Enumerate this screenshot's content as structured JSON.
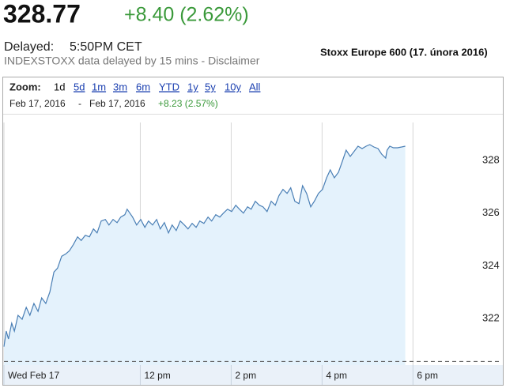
{
  "header": {
    "price": "328.77",
    "change": "+8.40 (2.62%)",
    "delayed_label": "Delayed:",
    "delayed_time": "5:50PM CET",
    "disclaimer": "INDEXSTOXX data delayed by 15 mins - Disclaimer"
  },
  "zoom": {
    "label": "Zoom:",
    "options": [
      "1d",
      "5d",
      "1m",
      "3m",
      "6m",
      "YTD",
      "1y",
      "5y",
      "10y",
      "All"
    ]
  },
  "range": {
    "from": "Feb 17, 2016",
    "separator": "-",
    "to": "Feb 17, 2016",
    "change": "+8.23 (2.57%)"
  },
  "chart_data": {
    "type": "area",
    "title": "Stoxx Europe 600 (17. února 2016)",
    "x": [
      9.0,
      9.05,
      9.1,
      9.17,
      9.23,
      9.31,
      9.4,
      9.49,
      9.57,
      9.66,
      9.75,
      9.83,
      9.92,
      10.01,
      10.1,
      10.18,
      10.27,
      10.36,
      10.44,
      10.53,
      10.62,
      10.7,
      10.79,
      10.88,
      10.97,
      11.05,
      11.14,
      11.23,
      11.31,
      11.4,
      11.49,
      11.57,
      11.66,
      11.71,
      11.83,
      11.92,
      12.01,
      12.1,
      12.18,
      12.27,
      12.36,
      12.44,
      12.53,
      12.62,
      12.7,
      12.79,
      12.88,
      12.97,
      13.05,
      13.14,
      13.23,
      13.31,
      13.4,
      13.49,
      13.57,
      13.66,
      13.75,
      13.83,
      13.92,
      14.01,
      14.1,
      14.18,
      14.27,
      14.36,
      14.44,
      14.53,
      14.62,
      14.7,
      14.79,
      14.88,
      14.97,
      15.05,
      15.14,
      15.23,
      15.31,
      15.4,
      15.49,
      15.57,
      15.66,
      15.75,
      15.83,
      15.92,
      16.01,
      16.1,
      16.18,
      16.27,
      16.36,
      16.44,
      16.53,
      16.62,
      16.7,
      16.79,
      16.88,
      16.97,
      17.05,
      17.14,
      17.23,
      17.31,
      17.4,
      17.43,
      17.49,
      17.57,
      17.66,
      17.75,
      17.83
    ],
    "series": [
      {
        "color": "#4a7fb5",
        "fill": "#e4f2fc",
        "values": [
          320.93,
          321.52,
          321.22,
          321.82,
          321.52,
          322.12,
          321.97,
          322.42,
          322.12,
          322.57,
          322.27,
          322.78,
          322.57,
          323.01,
          323.76,
          323.91,
          324.36,
          324.45,
          324.57,
          324.81,
          325.1,
          324.96,
          325.16,
          325.1,
          325.4,
          325.25,
          325.7,
          325.76,
          325.55,
          325.76,
          325.64,
          325.85,
          325.94,
          326.15,
          325.85,
          325.55,
          325.76,
          325.46,
          325.7,
          325.55,
          325.76,
          325.4,
          325.64,
          325.25,
          325.55,
          325.34,
          325.7,
          325.55,
          325.4,
          325.61,
          325.46,
          325.7,
          325.61,
          325.85,
          325.7,
          325.94,
          325.85,
          326.0,
          326.15,
          326.06,
          326.3,
          326.15,
          326.0,
          326.24,
          326.15,
          326.45,
          326.3,
          326.24,
          326.06,
          326.45,
          326.3,
          326.66,
          326.9,
          326.75,
          326.96,
          326.45,
          326.36,
          327.04,
          326.75,
          326.24,
          326.45,
          326.75,
          326.9,
          327.34,
          327.64,
          327.34,
          327.55,
          327.94,
          328.39,
          328.15,
          328.33,
          328.54,
          328.45,
          328.54,
          328.6,
          328.51,
          328.45,
          328.24,
          328.09,
          328.39,
          328.54,
          328.48,
          328.48,
          328.51,
          328.54
        ]
      }
    ],
    "previous_close": 320.37,
    "xlim": [
      9,
      19.96
    ],
    "ylim": [
      320.23,
      329.44
    ],
    "xticks": [
      {
        "value": 9,
        "label": "Wed Feb 17"
      },
      {
        "value": 12,
        "label": "12 pm"
      },
      {
        "value": 14,
        "label": "2 pm"
      },
      {
        "value": 16,
        "label": "4 pm"
      },
      {
        "value": 18,
        "label": "6 pm"
      }
    ],
    "yticks": [
      322,
      324,
      326,
      328
    ],
    "grid": true
  }
}
